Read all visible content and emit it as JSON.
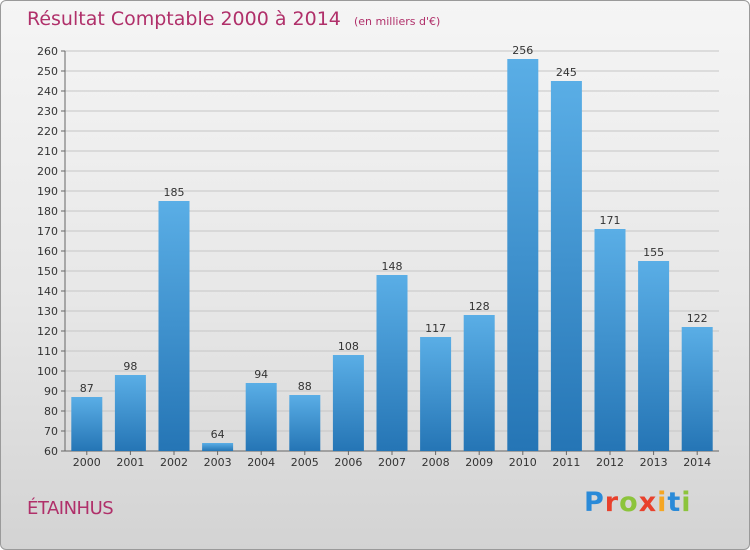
{
  "header": {
    "title": "Résultat Comptable 2000 à 2014",
    "unit": "(en milliers d'€)"
  },
  "footer": {
    "city": "ÉTAINHUS",
    "logo": [
      "P",
      "r",
      "o",
      "x",
      "i",
      "t",
      "i"
    ],
    "logo_colors": [
      "#2a8ad8",
      "#e8412c",
      "#8cc43c",
      "#e8412c",
      "#f5a623",
      "#2a8ad8",
      "#8cc43c"
    ]
  },
  "colors": {
    "bar_light": "#5aaee6",
    "bar_dark": "#2575b5",
    "text_accent": "#b0306a"
  },
  "chart_data": {
    "type": "bar",
    "categories": [
      "2000",
      "2001",
      "2002",
      "2003",
      "2004",
      "2005",
      "2006",
      "2007",
      "2008",
      "2009",
      "2010",
      "2011",
      "2012",
      "2013",
      "2014"
    ],
    "values": [
      87,
      98,
      185,
      64,
      94,
      88,
      108,
      148,
      117,
      128,
      256,
      245,
      171,
      155,
      122
    ],
    "ylim": [
      60,
      260
    ],
    "ytick_step": 10,
    "grid": true,
    "xlabel": "",
    "ylabel": ""
  }
}
